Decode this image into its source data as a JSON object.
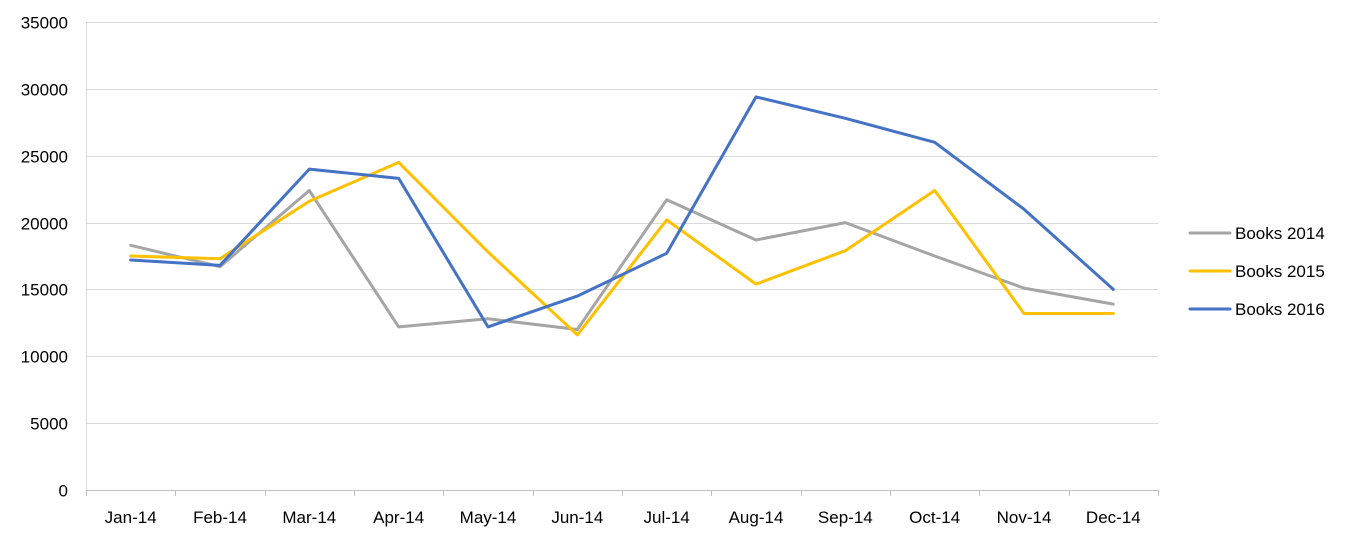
{
  "chart_data": {
    "type": "line",
    "title": "",
    "xlabel": "",
    "ylabel": "",
    "categories": [
      "Jan-14",
      "Feb-14",
      "Mar-14",
      "Apr-14",
      "May-14",
      "Jun-14",
      "Jul-14",
      "Aug-14",
      "Sep-14",
      "Oct-14",
      "Nov-14",
      "Dec-14"
    ],
    "ylim": [
      0,
      35000
    ],
    "yticks": [
      "0",
      "5000",
      "10000",
      "15000",
      "20000",
      "25000",
      "30000",
      "35000"
    ],
    "grid": true,
    "legend_position": "right",
    "series": [
      {
        "name": "Books 2014",
        "color": "#a5a5a5",
        "values": [
          18300,
          16700,
          22400,
          12200,
          12800,
          12000,
          21700,
          18700,
          20000,
          17500,
          15100,
          13900
        ]
      },
      {
        "name": "Books 2015",
        "color": "#ffc000",
        "values": [
          17500,
          17300,
          21600,
          24500,
          17800,
          11600,
          20200,
          15400,
          17900,
          22400,
          13200,
          13200
        ]
      },
      {
        "name": "Books 2016",
        "color": "#4472c4",
        "values": [
          17200,
          16800,
          24000,
          23300,
          12200,
          14500,
          17700,
          29400,
          27800,
          26000,
          21000,
          15000
        ]
      }
    ]
  }
}
